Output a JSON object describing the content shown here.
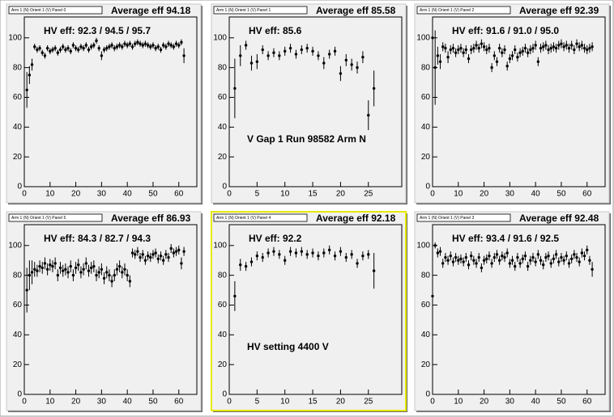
{
  "chart_data": [
    {
      "type": "scatter",
      "title": "Arm 1 (N) Orient 1 (V) Panel 0",
      "average_label": "Average eff 94.18",
      "hv_label": "HV eff:   92.3 / 94.5 / 95.7",
      "color": "#000000",
      "highlight": false,
      "xlim": [
        0,
        67
      ],
      "ylim": [
        0,
        114
      ],
      "xticks": [
        0,
        10,
        20,
        30,
        40,
        50,
        60
      ],
      "yticks": [
        0,
        20,
        40,
        60,
        80,
        100
      ],
      "x": [
        1,
        2,
        3,
        4,
        5,
        6,
        7,
        8,
        9,
        10,
        11,
        12,
        13,
        14,
        15,
        16,
        17,
        18,
        19,
        20,
        21,
        22,
        23,
        24,
        25,
        26,
        27,
        28,
        29,
        30,
        31,
        32,
        33,
        34,
        35,
        36,
        37,
        38,
        39,
        40,
        41,
        42,
        43,
        44,
        45,
        46,
        47,
        48,
        49,
        50,
        51,
        52,
        53,
        54,
        55,
        56,
        57,
        58,
        59,
        60,
        61,
        62
      ],
      "values": [
        65,
        75,
        82,
        94,
        92,
        93,
        90,
        88,
        93,
        91,
        92,
        93,
        90,
        92,
        94,
        92,
        93,
        91,
        95,
        93,
        92,
        94,
        93,
        95,
        92,
        94,
        95,
        98,
        93,
        88,
        92,
        93,
        94,
        95,
        93,
        94,
        95,
        94,
        96,
        95,
        96,
        94,
        96,
        97,
        96,
        95,
        96,
        95,
        94,
        95,
        93,
        94,
        92,
        95,
        94,
        96,
        95,
        94,
        96,
        95,
        97,
        88
      ],
      "errors": [
        12,
        6,
        4,
        2,
        2,
        2,
        2,
        2,
        2,
        2,
        2,
        2,
        2,
        2,
        2,
        2,
        2,
        2,
        2,
        2,
        2,
        2,
        2,
        2,
        2,
        2,
        2,
        2,
        2,
        3,
        2,
        2,
        2,
        2,
        2,
        2,
        2,
        2,
        2,
        2,
        2,
        2,
        2,
        2,
        2,
        2,
        2,
        2,
        2,
        2,
        2,
        2,
        2,
        2,
        2,
        2,
        2,
        2,
        2,
        2,
        2,
        5
      ]
    },
    {
      "type": "scatter",
      "title": "Arm 1 (N) Orient 1 (V) Panel 1",
      "average_label": "Average eff 85.58",
      "hv_label": "HV eff:   85.6",
      "annotation": "V Gap 1 Run 98582 Arm N",
      "color": "#000000",
      "highlight": false,
      "xlim": [
        0,
        31
      ],
      "ylim": [
        0,
        114
      ],
      "xticks": [
        0,
        5,
        10,
        15,
        20,
        25
      ],
      "yticks": [
        0,
        20,
        40,
        60,
        80,
        100
      ],
      "x": [
        1,
        2,
        3,
        4,
        5,
        6,
        7,
        8,
        9,
        10,
        11,
        12,
        13,
        14,
        15,
        16,
        17,
        18,
        19,
        20,
        21,
        22,
        23,
        24,
        25,
        26
      ],
      "values": [
        66,
        88,
        95,
        83,
        84,
        92,
        88,
        90,
        88,
        91,
        93,
        89,
        92,
        93,
        91,
        88,
        83,
        89,
        91,
        76,
        85,
        82,
        80,
        87,
        48,
        66
      ],
      "errors": [
        20,
        7,
        3,
        5,
        5,
        3,
        3,
        3,
        3,
        3,
        3,
        3,
        3,
        3,
        3,
        3,
        4,
        3,
        3,
        5,
        4,
        4,
        4,
        4,
        10,
        12
      ]
    },
    {
      "type": "scatter",
      "title": "Arm 1 (N) Orient 1 (V) Panel 2",
      "average_label": "Average eff 92.39",
      "hv_label": "HV eff:   91.6 / 91.0 / 95.0",
      "color": "#000000",
      "highlight": false,
      "xlim": [
        0,
        67
      ],
      "ylim": [
        0,
        114
      ],
      "xticks": [
        0,
        10,
        20,
        30,
        40,
        50,
        60
      ],
      "yticks": [
        0,
        20,
        40,
        60,
        80,
        100
      ],
      "x": [
        0,
        1,
        2,
        3,
        4,
        5,
        6,
        7,
        8,
        9,
        10,
        11,
        12,
        13,
        14,
        15,
        16,
        17,
        18,
        19,
        20,
        21,
        22,
        23,
        24,
        25,
        26,
        27,
        28,
        29,
        30,
        31,
        32,
        33,
        34,
        35,
        36,
        37,
        38,
        39,
        40,
        41,
        42,
        43,
        44,
        45,
        46,
        47,
        48,
        49,
        50,
        51,
        52,
        53,
        54,
        55,
        56,
        57,
        58,
        59,
        60,
        61,
        62
      ],
      "values": [
        100,
        80,
        88,
        84,
        94,
        93,
        87,
        92,
        93,
        90,
        92,
        93,
        90,
        92,
        86,
        92,
        93,
        95,
        93,
        96,
        94,
        92,
        93,
        80,
        88,
        84,
        93,
        90,
        92,
        81,
        86,
        88,
        92,
        87,
        90,
        91,
        93,
        90,
        92,
        93,
        95,
        84,
        93,
        94,
        95,
        92,
        93,
        94,
        93,
        95,
        96,
        94,
        95,
        93,
        95,
        92,
        96,
        94,
        95,
        93,
        92,
        93,
        94
      ],
      "errors": [
        2,
        25,
        6,
        5,
        3,
        3,
        4,
        3,
        3,
        3,
        3,
        3,
        3,
        3,
        3,
        3,
        3,
        3,
        3,
        3,
        3,
        3,
        3,
        3,
        3,
        3,
        3,
        3,
        3,
        3,
        3,
        3,
        3,
        3,
        3,
        3,
        3,
        3,
        3,
        3,
        3,
        3,
        3,
        3,
        3,
        3,
        3,
        3,
        3,
        3,
        3,
        3,
        3,
        3,
        3,
        3,
        3,
        3,
        3,
        3,
        3,
        3,
        3
      ]
    },
    {
      "type": "scatter",
      "title": "Arm 1 (N) Orient 1 (V) Panel 5",
      "average_label": "Average eff 86.93",
      "hv_label": "HV eff:   84.3 / 82.7 / 94.3",
      "color": "#000000",
      "highlight": false,
      "xlim": [
        0,
        67
      ],
      "ylim": [
        0,
        114
      ],
      "xticks": [
        0,
        10,
        20,
        30,
        40,
        50,
        60
      ],
      "yticks": [
        0,
        20,
        40,
        60,
        80,
        100
      ],
      "x": [
        1,
        2,
        3,
        4,
        5,
        6,
        7,
        8,
        9,
        10,
        11,
        12,
        13,
        14,
        15,
        16,
        17,
        18,
        19,
        20,
        21,
        22,
        23,
        24,
        25,
        26,
        27,
        28,
        29,
        30,
        31,
        32,
        33,
        34,
        35,
        36,
        37,
        38,
        39,
        40,
        41,
        42,
        43,
        44,
        45,
        46,
        47,
        48,
        49,
        50,
        51,
        52,
        53,
        54,
        55,
        56,
        57,
        58,
        59,
        60,
        61,
        62
      ],
      "values": [
        70,
        80,
        82,
        84,
        83,
        86,
        85,
        88,
        84,
        87,
        86,
        88,
        80,
        85,
        83,
        84,
        82,
        86,
        80,
        85,
        87,
        82,
        84,
        88,
        83,
        85,
        86,
        80,
        82,
        84,
        78,
        82,
        80,
        76,
        80,
        84,
        86,
        82,
        84,
        80,
        76,
        95,
        94,
        96,
        92,
        94,
        90,
        93,
        92,
        94,
        95,
        91,
        93,
        90,
        94,
        92,
        98,
        95,
        96,
        97,
        88,
        96
      ],
      "errors": [
        15,
        10,
        8,
        5,
        4,
        4,
        4,
        4,
        4,
        4,
        4,
        4,
        4,
        4,
        4,
        4,
        4,
        4,
        4,
        4,
        4,
        4,
        4,
        4,
        4,
        4,
        4,
        4,
        4,
        4,
        4,
        4,
        4,
        4,
        4,
        4,
        4,
        4,
        4,
        4,
        4,
        3,
        3,
        3,
        3,
        3,
        3,
        3,
        3,
        3,
        3,
        3,
        3,
        3,
        3,
        3,
        3,
        3,
        3,
        3,
        4,
        3
      ]
    },
    {
      "type": "scatter",
      "title": "Arm 1 (N) Orient 1 (V) Panel 4",
      "average_label": "Average eff 92.18",
      "hv_label": "HV eff:   92.2",
      "annotation": "HV setting 4400 V",
      "color": "#000000",
      "highlight": true,
      "xlim": [
        0,
        31
      ],
      "ylim": [
        0,
        114
      ],
      "xticks": [
        0,
        5,
        10,
        15,
        20,
        25
      ],
      "yticks": [
        0,
        20,
        40,
        60,
        80,
        100
      ],
      "x": [
        1,
        2,
        3,
        4,
        5,
        6,
        7,
        8,
        9,
        10,
        11,
        12,
        13,
        14,
        15,
        16,
        17,
        18,
        19,
        20,
        21,
        22,
        23,
        24,
        25,
        26
      ],
      "values": [
        66,
        87,
        86,
        89,
        93,
        92,
        95,
        96,
        94,
        90,
        96,
        95,
        96,
        94,
        95,
        93,
        95,
        97,
        93,
        96,
        92,
        94,
        88,
        93,
        94,
        83
      ],
      "errors": [
        10,
        4,
        3,
        3,
        3,
        3,
        3,
        3,
        3,
        3,
        3,
        3,
        3,
        3,
        3,
        3,
        3,
        3,
        3,
        3,
        3,
        3,
        3,
        3,
        3,
        12
      ]
    },
    {
      "type": "scatter",
      "title": "Arm 1 (N) Orient 1 (V) Panel 3",
      "average_label": "Average eff 92.48",
      "hv_label": "HV eff:   93.4 / 91.6 / 92.5",
      "color": "#000000",
      "highlight": false,
      "xlim": [
        0,
        67
      ],
      "ylim": [
        0,
        114
      ],
      "xticks": [
        0,
        10,
        20,
        30,
        40,
        50,
        60
      ],
      "yticks": [
        0,
        20,
        40,
        60,
        80,
        100
      ],
      "x": [
        0,
        1,
        2,
        3,
        4,
        5,
        6,
        7,
        8,
        9,
        10,
        11,
        12,
        13,
        14,
        15,
        16,
        17,
        18,
        19,
        20,
        21,
        22,
        23,
        24,
        25,
        26,
        27,
        28,
        29,
        30,
        31,
        32,
        33,
        34,
        35,
        36,
        37,
        38,
        39,
        40,
        41,
        42,
        43,
        44,
        45,
        46,
        47,
        48,
        49,
        50,
        51,
        52,
        53,
        54,
        55,
        56,
        57,
        58,
        59,
        60,
        61,
        62
      ],
      "values": [
        66,
        100,
        95,
        96,
        88,
        92,
        90,
        93,
        89,
        92,
        90,
        91,
        89,
        92,
        87,
        93,
        90,
        88,
        92,
        85,
        90,
        91,
        93,
        88,
        92,
        94,
        90,
        93,
        92,
        95,
        88,
        90,
        86,
        92,
        88,
        91,
        93,
        86,
        90,
        92,
        89,
        94,
        90,
        87,
        92,
        93,
        88,
        91,
        94,
        89,
        92,
        90,
        93,
        88,
        91,
        94,
        92,
        89,
        95,
        93,
        97,
        90,
        84
      ],
      "errors": [
        25,
        2,
        3,
        3,
        3,
        3,
        3,
        3,
        3,
        3,
        3,
        3,
        3,
        3,
        3,
        3,
        3,
        3,
        3,
        3,
        3,
        3,
        3,
        3,
        3,
        3,
        3,
        3,
        3,
        3,
        3,
        3,
        3,
        3,
        3,
        3,
        3,
        3,
        3,
        3,
        3,
        3,
        3,
        3,
        3,
        3,
        3,
        3,
        3,
        3,
        3,
        3,
        3,
        3,
        3,
        3,
        3,
        3,
        3,
        3,
        3,
        3,
        5
      ]
    }
  ]
}
